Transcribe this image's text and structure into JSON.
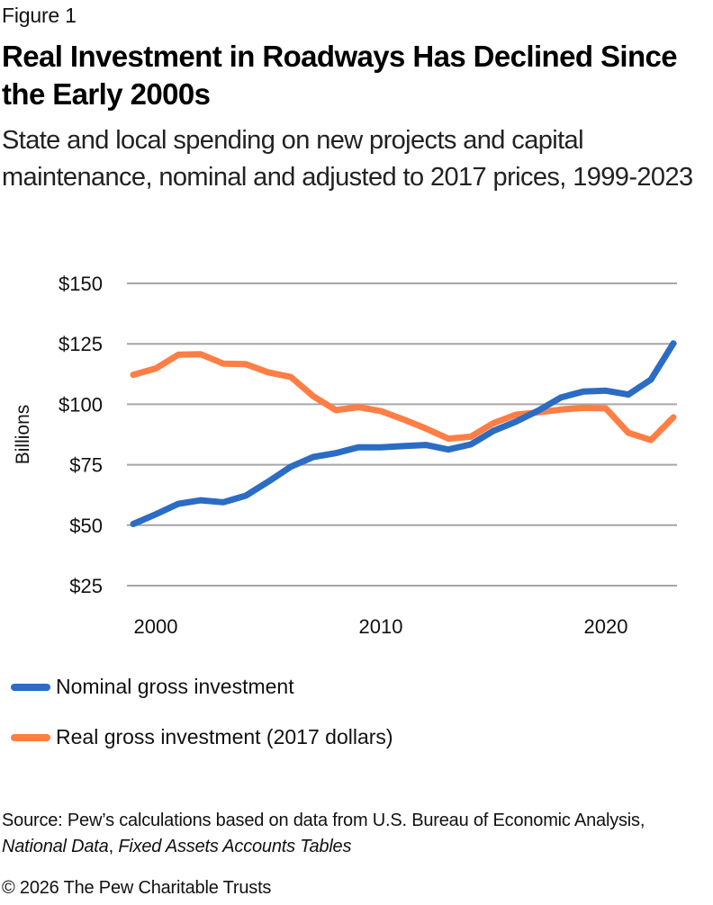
{
  "figure_label": "Figure 1",
  "title": "Real Investment in Roadways Has Declined Since the Early 2000s",
  "subtitle": "State and local spending on new projects and capital maintenance, nominal and adjusted to 2017 prices, 1999-2023",
  "source": {
    "prefix": "Source: Pew’s calculations based on data from U.S. Bureau of Economic Analysis, ",
    "italic_1": "National Data",
    "sep": ", ",
    "italic_2": "Fixed Assets Accounts Tables"
  },
  "copyright": "© 2026 The Pew Charitable Trusts",
  "colors": {
    "nominal": "#2B6CC4",
    "real": "#FF7E45",
    "grid": "#A6A6A6"
  },
  "chart_data": {
    "type": "line",
    "title": "Real Investment in Roadways Has Declined Since the Early 2000s",
    "xlabel": "",
    "ylabel": "Billions",
    "x": [
      1999,
      2000,
      2001,
      2002,
      2003,
      2004,
      2005,
      2006,
      2007,
      2008,
      2009,
      2010,
      2011,
      2012,
      2013,
      2014,
      2015,
      2016,
      2017,
      2018,
      2019,
      2020,
      2021,
      2022,
      2023
    ],
    "series": [
      {
        "name": "Nominal gross investment",
        "color": "#2B6CC4",
        "values": [
          50.5,
          54.5,
          58.8,
          60.3,
          59.5,
          62.2,
          68,
          74.2,
          78.2,
          79.8,
          82.2,
          82.2,
          82.7,
          83.2,
          81.3,
          83.4,
          89,
          92.8,
          97.4,
          102.8,
          105.3,
          105.6,
          104,
          110.2,
          125.2
        ]
      },
      {
        "name": "Real gross investment (2017 dollars)",
        "color": "#FF7E45",
        "values": [
          112.2,
          114.8,
          120.5,
          120.7,
          116.8,
          116.6,
          113.2,
          111.3,
          103.3,
          97.6,
          98.8,
          97.2,
          93.8,
          90,
          85.8,
          86.6,
          92.2,
          95.7,
          96.7,
          97.8,
          98.5,
          98.3,
          88.2,
          85.2,
          94.6
        ]
      }
    ],
    "yticks": [
      "$25",
      "$50",
      "$75",
      "$100",
      "$125",
      "$150"
    ],
    "ytick_values": [
      25,
      50,
      75,
      100,
      125,
      150
    ],
    "xticks": [
      "2000",
      "2010",
      "2020"
    ],
    "xtick_values": [
      2000,
      2010,
      2020
    ],
    "ylim": [
      25,
      150
    ],
    "xlim": [
      1999,
      2023
    ],
    "grid": true,
    "legend_position": "bottom-left"
  }
}
